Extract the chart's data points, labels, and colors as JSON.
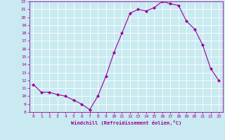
{
  "x": [
    0,
    1,
    2,
    3,
    4,
    5,
    6,
    7,
    8,
    9,
    10,
    11,
    12,
    13,
    14,
    15,
    16,
    17,
    18,
    19,
    20,
    21,
    22,
    23
  ],
  "y": [
    11.5,
    10.5,
    10.5,
    10.2,
    10.0,
    9.5,
    9.0,
    8.3,
    10.0,
    12.5,
    15.5,
    18.0,
    20.5,
    21.0,
    20.8,
    21.2,
    22.0,
    21.7,
    21.5,
    19.5,
    18.5,
    16.5,
    13.5,
    12.0
  ],
  "line_color": "#990099",
  "marker": "D",
  "marker_size": 2,
  "bg_color": "#c8eaf0",
  "grid_color": "#ffffff",
  "xlabel": "Windchill (Refroidissement éolien,°C)",
  "xlabel_color": "#990099",
  "tick_color": "#990099",
  "ylim": [
    8,
    22
  ],
  "xlim": [
    -0.5,
    23.5
  ],
  "yticks": [
    8,
    9,
    10,
    11,
    12,
    13,
    14,
    15,
    16,
    17,
    18,
    19,
    20,
    21,
    22
  ],
  "xticks": [
    0,
    1,
    2,
    3,
    4,
    5,
    6,
    7,
    8,
    9,
    10,
    11,
    12,
    13,
    14,
    15,
    16,
    17,
    18,
    19,
    20,
    21,
    22,
    23
  ]
}
